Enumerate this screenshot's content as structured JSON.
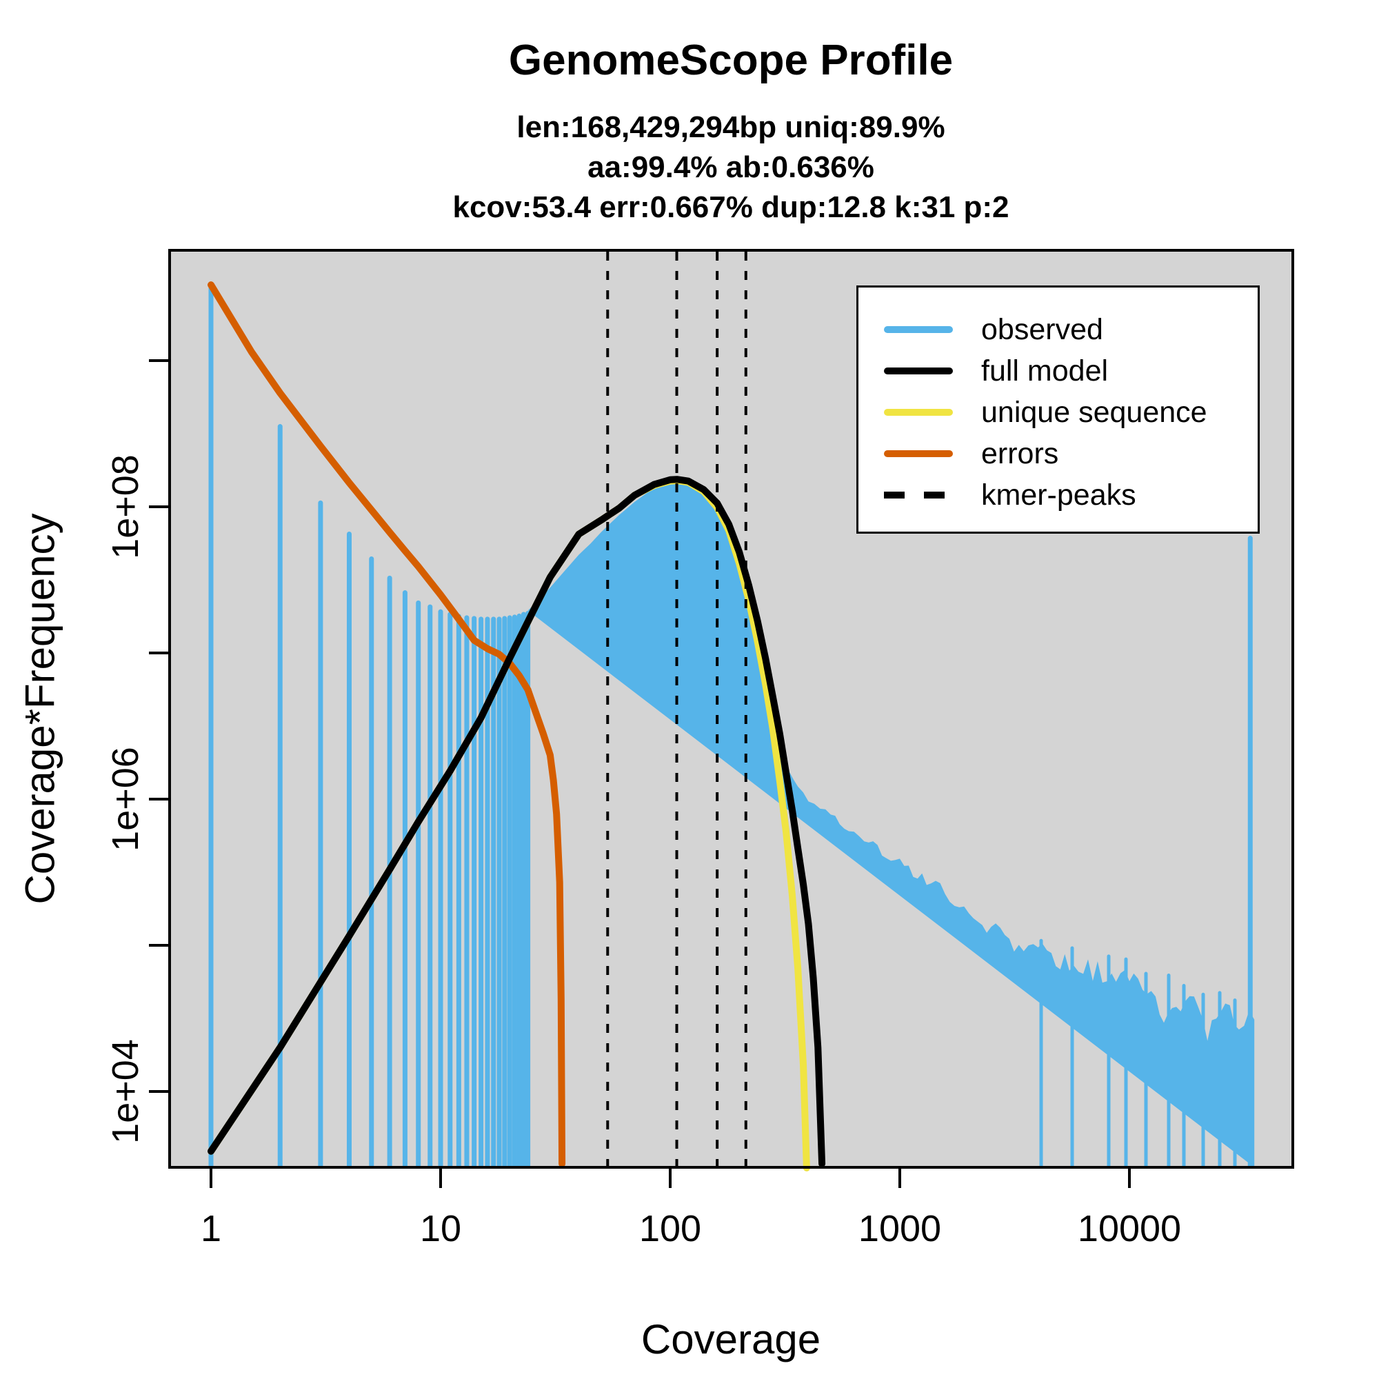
{
  "title": "GenomeScope Profile",
  "subtitle_lines": [
    "len:168,429,294bp uniq:89.9%",
    "aa:99.4% ab:0.636%",
    "kcov:53.4 err:0.667%  dup:12.8  k:31 p:2"
  ],
  "axes": {
    "x_label": "Coverage",
    "y_label": "Coverage*Frequency",
    "x_scale": "log",
    "y_scale": "log",
    "x_ticks": [
      {
        "value": 1,
        "label": "1"
      },
      {
        "value": 10,
        "label": "10"
      },
      {
        "value": 100,
        "label": "100"
      },
      {
        "value": 1000,
        "label": "1000"
      },
      {
        "value": 10000,
        "label": "10000"
      }
    ],
    "y_ticks": [
      {
        "value": 10000.0,
        "label": "1e+04"
      },
      {
        "value": 100000.0,
        "label": ""
      },
      {
        "value": 1000000.0,
        "label": "1e+06"
      },
      {
        "value": 10000000.0,
        "label": ""
      },
      {
        "value": 100000000.0,
        "label": "1e+08"
      },
      {
        "value": 1000000000.0,
        "label": ""
      }
    ]
  },
  "legend": {
    "items": [
      {
        "label": "observed",
        "color": "#56B4E9",
        "dashed": false
      },
      {
        "label": "full model",
        "color": "#000000",
        "dashed": false
      },
      {
        "label": "unique sequence",
        "color": "#F0E442",
        "dashed": false
      },
      {
        "label": "errors",
        "color": "#D55E00",
        "dashed": false
      },
      {
        "label": "kmer-peaks",
        "color": "#000000",
        "dashed": true
      }
    ]
  },
  "colors": {
    "observed": "#56B4E9",
    "full_model": "#000000",
    "unique_sequence": "#F0E442",
    "errors": "#D55E00",
    "kmer_peaks": "#000000",
    "plot_bg": "#D4D4D4",
    "page_bg": "#FFFFFF",
    "text": "#000000"
  },
  "chart_data": {
    "type": "area",
    "title": "GenomeScope Profile",
    "xlabel": "Coverage",
    "ylabel": "Coverage*Frequency",
    "xlim": [
      1,
      40000
    ],
    "ylim": [
      3000,
      5000000000.0
    ],
    "grid": false,
    "legend_position": "top-right",
    "kmer_peaks": [
      53.4,
      106.8,
      160.2,
      213.6
    ],
    "observed_bars": [
      [
        1,
        3300000000.0
      ],
      [
        2,
        370000000.0
      ],
      [
        3,
        111000000.0
      ],
      [
        4,
        68000000.0
      ],
      [
        5,
        46000000.0
      ],
      [
        6,
        34000000.0
      ],
      [
        7,
        27000000.0
      ],
      [
        8,
        23000000.0
      ],
      [
        9,
        21600000.0
      ],
      [
        10,
        20000000.0
      ],
      [
        11,
        19200000.0
      ],
      [
        12,
        18600000.0
      ],
      [
        13,
        18200000.0
      ],
      [
        14,
        18000000.0
      ],
      [
        15,
        17800000.0
      ],
      [
        16,
        17800000.0
      ],
      [
        17,
        17800000.0
      ],
      [
        18,
        17800000.0
      ],
      [
        19,
        18000000.0
      ],
      [
        20,
        18200000.0
      ],
      [
        21,
        18400000.0
      ],
      [
        22,
        18700000.0
      ],
      [
        23,
        19200000.0
      ],
      [
        24,
        19500000.0
      ]
    ],
    "observed_continuum": [
      [
        24,
        19500000.0
      ],
      [
        27,
        23500000.0
      ],
      [
        30,
        28000000.0
      ],
      [
        35,
        37000000.0
      ],
      [
        40,
        47000000.0
      ],
      [
        45,
        56000000.0
      ],
      [
        50,
        67000000.0
      ],
      [
        60,
        88000000.0
      ],
      [
        70,
        108000000.0
      ],
      [
        80,
        126000000.0
      ],
      [
        90,
        137000000.0
      ],
      [
        100,
        145000000.0
      ],
      [
        107,
        146000000.0
      ],
      [
        115,
        145000000.0
      ],
      [
        125,
        139000000.0
      ],
      [
        140,
        123000000.0
      ],
      [
        155,
        105000000.0
      ],
      [
        170,
        84000000.0
      ],
      [
        185,
        64000000.0
      ],
      [
        200,
        46000000.0
      ],
      [
        215,
        31000000.0
      ],
      [
        230,
        20000000.0
      ],
      [
        245,
        12300000.0
      ],
      [
        260,
        8000000.0
      ],
      [
        275,
        5000000.0
      ],
      [
        290,
        3200000.0
      ],
      [
        310,
        2100000.0
      ],
      [
        330,
        1540000.0
      ],
      [
        360,
        1200000.0
      ],
      [
        400,
        970000.0
      ],
      [
        450,
        850000.0
      ],
      [
        500,
        780000.0
      ],
      [
        600,
        630000.0
      ],
      [
        700,
        540000.0
      ],
      [
        800,
        460000.0
      ],
      [
        1000,
        370000.0
      ],
      [
        1250,
        290000.0
      ],
      [
        1500,
        240000.0
      ],
      [
        2000,
        169000.0
      ],
      [
        2500,
        132000.0
      ],
      [
        3000,
        111000.0
      ],
      [
        4000,
        90000.0
      ],
      [
        5000,
        80000.0
      ],
      [
        6000,
        73000.0
      ],
      [
        8000,
        64000.0
      ],
      [
        10000,
        57000.0
      ],
      [
        13000,
        47000.0
      ],
      [
        16000,
        41000.0
      ],
      [
        20000,
        38000.0
      ],
      [
        25000,
        34000.0
      ],
      [
        30000,
        32000.0
      ],
      [
        35000,
        31000.0
      ]
    ],
    "last_bin_spike": {
      "coverage": 33600,
      "value": 63000000.0
    },
    "full_model": [
      [
        1,
        3900
      ],
      [
        2,
        20000
      ],
      [
        3,
        56000
      ],
      [
        4,
        116000
      ],
      [
        6,
        330000
      ],
      [
        8,
        700000
      ],
      [
        11,
        1560000.0
      ],
      [
        15,
        3600000.0
      ],
      [
        20,
        9200000.0
      ],
      [
        25,
        18600000.0
      ],
      [
        30,
        33000000.0
      ],
      [
        40,
        65000000.0
      ],
      [
        50,
        81000000.0
      ],
      [
        60,
        98000000.0
      ],
      [
        70,
        120000000.0
      ],
      [
        85,
        142000000.0
      ],
      [
        100,
        153000000.0
      ],
      [
        107,
        154000000.0
      ],
      [
        120,
        150000000.0
      ],
      [
        140,
        131000000.0
      ],
      [
        160,
        106000000.0
      ],
      [
        180,
        76000000.0
      ],
      [
        200,
        49000000.0
      ],
      [
        220,
        29000000.0
      ],
      [
        240,
        16600000.0
      ],
      [
        260,
        9200000.0
      ],
      [
        280,
        5000000.0
      ],
      [
        300,
        2800000.0
      ],
      [
        320,
        1500000.0
      ],
      [
        340,
        840000.0
      ],
      [
        360,
        460000.0
      ],
      [
        380,
        260000.0
      ],
      [
        400,
        140000.0
      ],
      [
        420,
        60000.0
      ],
      [
        440,
        20000.0
      ],
      [
        458,
        3200
      ]
    ],
    "unique_sequence": [
      [
        1,
        3900
      ],
      [
        2,
        20000
      ],
      [
        3,
        56000
      ],
      [
        4,
        116000
      ],
      [
        6,
        330000
      ],
      [
        8,
        700000
      ],
      [
        11,
        1560000.0
      ],
      [
        15,
        3600000.0
      ],
      [
        20,
        9200000.0
      ],
      [
        25,
        18600000.0
      ],
      [
        30,
        33000000.0
      ],
      [
        40,
        65000000.0
      ],
      [
        50,
        81000000.0
      ],
      [
        60,
        98000000.0
      ],
      [
        70,
        120000000.0
      ],
      [
        85,
        140000000.0
      ],
      [
        100,
        150000000.0
      ],
      [
        107,
        151000000.0
      ],
      [
        120,
        147000000.0
      ],
      [
        140,
        127000000.0
      ],
      [
        160,
        99000000.0
      ],
      [
        180,
        69000000.0
      ],
      [
        200,
        41000000.0
      ],
      [
        220,
        23000000.0
      ],
      [
        240,
        12000000.0
      ],
      [
        260,
        6100000.0
      ],
      [
        280,
        3000000.0
      ],
      [
        300,
        1330000.0
      ],
      [
        320,
        590000.0
      ],
      [
        340,
        220000.0
      ],
      [
        360,
        69000.0
      ],
      [
        380,
        15000.0
      ],
      [
        393,
        3000
      ]
    ],
    "errors": [
      [
        1,
        3300000000.0
      ],
      [
        1.5,
        1150000000.0
      ],
      [
        2,
        600000000.0
      ],
      [
        3,
        260000000.0
      ],
      [
        4,
        146000000.0
      ],
      [
        5,
        95000000.0
      ],
      [
        6,
        67000000.0
      ],
      [
        7,
        50000000.0
      ],
      [
        8,
        39000000.0
      ],
      [
        10,
        25000000.0
      ],
      [
        12,
        17000000.0
      ],
      [
        14,
        12200000.0
      ],
      [
        16,
        10700000.0
      ],
      [
        18,
        9800000.0
      ],
      [
        20,
        8500000.0
      ],
      [
        22,
        7000000.0
      ],
      [
        24,
        5600000.0
      ],
      [
        26,
        3900000.0
      ],
      [
        28,
        2800000.0
      ],
      [
        30,
        2000000.0
      ],
      [
        31,
        1350000.0
      ],
      [
        32,
        790000.0
      ],
      [
        33,
        270000.0
      ],
      [
        33.5,
        43000.0
      ],
      [
        33.8,
        3200
      ]
    ]
  }
}
